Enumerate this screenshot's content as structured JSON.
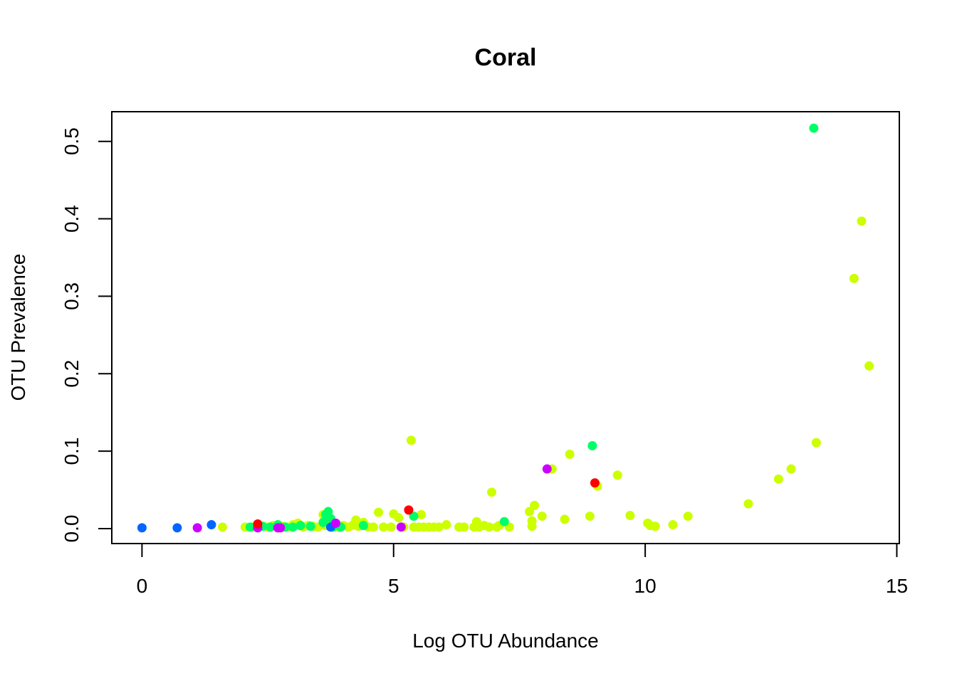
{
  "chart_data": {
    "type": "scatter",
    "title": "Coral",
    "xlabel": "Log OTU Abundance",
    "ylabel": "OTU Prevalence",
    "xlim": [
      -0.6,
      15.05
    ],
    "ylim": [
      -0.0193,
      0.5383
    ],
    "xticks": [
      0,
      5,
      10,
      15
    ],
    "xtick_labels": [
      "0",
      "5",
      "10",
      "15"
    ],
    "yticks": [
      0.0,
      0.1,
      0.2,
      0.3,
      0.4,
      0.5
    ],
    "ytick_labels": [
      "0.0",
      "0.1",
      "0.2",
      "0.3",
      "0.4",
      "0.5"
    ],
    "grid": false,
    "legend": "none",
    "colors": {
      "yellowgreen": "#CCFF00",
      "green": "#00FF66",
      "blue": "#0066FF",
      "magenta": "#CC00FF",
      "red": "#FF0000"
    },
    "series": [
      {
        "color": "#CCFF00",
        "points": [
          [
            1.6,
            0.002
          ],
          [
            2.05,
            0.002
          ],
          [
            2.2,
            0.002
          ],
          [
            2.35,
            0.003
          ],
          [
            2.5,
            0.002
          ],
          [
            2.6,
            0.004
          ],
          [
            2.7,
            0.002
          ],
          [
            2.8,
            0.003
          ],
          [
            2.9,
            0.002
          ],
          [
            3.0,
            0.005
          ],
          [
            3.1,
            0.007
          ],
          [
            3.2,
            0.002
          ],
          [
            3.3,
            0.004
          ],
          [
            3.4,
            0.003
          ],
          [
            3.5,
            0.002
          ],
          [
            3.6,
            0.018
          ],
          [
            3.65,
            0.004
          ],
          [
            3.8,
            0.002
          ],
          [
            3.9,
            0.002
          ],
          [
            4.0,
            0.004
          ],
          [
            4.1,
            0.002
          ],
          [
            4.2,
            0.005
          ],
          [
            4.25,
            0.011
          ],
          [
            4.3,
            0.003
          ],
          [
            4.4,
            0.008
          ],
          [
            4.5,
            0.002
          ],
          [
            4.6,
            0.002
          ],
          [
            4.7,
            0.021
          ],
          [
            4.8,
            0.002
          ],
          [
            4.95,
            0.002
          ],
          [
            5.0,
            0.019
          ],
          [
            5.1,
            0.014
          ],
          [
            5.2,
            0.002
          ],
          [
            5.35,
            0.114
          ],
          [
            5.4,
            0.002
          ],
          [
            5.5,
            0.002
          ],
          [
            5.55,
            0.018
          ],
          [
            5.6,
            0.002
          ],
          [
            5.7,
            0.002
          ],
          [
            5.8,
            0.002
          ],
          [
            5.9,
            0.002
          ],
          [
            6.05,
            0.005
          ],
          [
            6.3,
            0.002
          ],
          [
            6.4,
            0.002
          ],
          [
            6.6,
            0.002
          ],
          [
            6.65,
            0.009
          ],
          [
            6.7,
            0.002
          ],
          [
            6.8,
            0.004
          ],
          [
            6.9,
            0.002
          ],
          [
            6.95,
            0.047
          ],
          [
            7.05,
            0.002
          ],
          [
            7.1,
            0.004
          ],
          [
            7.3,
            0.002
          ],
          [
            7.7,
            0.022
          ],
          [
            7.75,
            0.003
          ],
          [
            7.75,
            0.01
          ],
          [
            7.8,
            0.03
          ],
          [
            7.95,
            0.016
          ],
          [
            8.15,
            0.077
          ],
          [
            8.4,
            0.012
          ],
          [
            8.5,
            0.096
          ],
          [
            8.9,
            0.016
          ],
          [
            9.05,
            0.055
          ],
          [
            9.45,
            0.069
          ],
          [
            9.7,
            0.017
          ],
          [
            10.05,
            0.007
          ],
          [
            10.1,
            0.004
          ],
          [
            10.2,
            0.003
          ],
          [
            10.55,
            0.005
          ],
          [
            10.85,
            0.016
          ],
          [
            12.05,
            0.032
          ],
          [
            12.65,
            0.064
          ],
          [
            12.9,
            0.077
          ],
          [
            13.4,
            0.111
          ],
          [
            14.15,
            0.323
          ],
          [
            14.3,
            0.397
          ],
          [
            14.45,
            0.21
          ]
        ]
      },
      {
        "color": "#00FF66",
        "points": [
          [
            2.15,
            0.002
          ],
          [
            2.4,
            0.003
          ],
          [
            2.55,
            0.002
          ],
          [
            2.7,
            0.005
          ],
          [
            2.85,
            0.002
          ],
          [
            3.0,
            0.002
          ],
          [
            3.15,
            0.004
          ],
          [
            3.35,
            0.003
          ],
          [
            3.6,
            0.008
          ],
          [
            3.65,
            0.018
          ],
          [
            3.7,
            0.022
          ],
          [
            3.75,
            0.013
          ],
          [
            3.8,
            0.002
          ],
          [
            3.95,
            0.002
          ],
          [
            4.4,
            0.004
          ],
          [
            5.4,
            0.016
          ],
          [
            7.2,
            0.009
          ],
          [
            8.95,
            0.107
          ],
          [
            13.35,
            0.517
          ]
        ]
      },
      {
        "color": "#0066FF",
        "points": [
          [
            0.0,
            0.001
          ],
          [
            0.7,
            0.001
          ],
          [
            1.38,
            0.005
          ],
          [
            3.75,
            0.002
          ]
        ]
      },
      {
        "color": "#CC00FF",
        "points": [
          [
            1.1,
            0.001
          ],
          [
            2.3,
            0.001
          ],
          [
            2.7,
            0.001
          ],
          [
            2.75,
            0.001
          ],
          [
            3.85,
            0.007
          ],
          [
            5.15,
            0.002
          ],
          [
            8.05,
            0.077
          ]
        ]
      },
      {
        "color": "#FF0000",
        "points": [
          [
            2.3,
            0.006
          ],
          [
            5.3,
            0.024
          ],
          [
            9.0,
            0.059
          ]
        ]
      }
    ]
  }
}
